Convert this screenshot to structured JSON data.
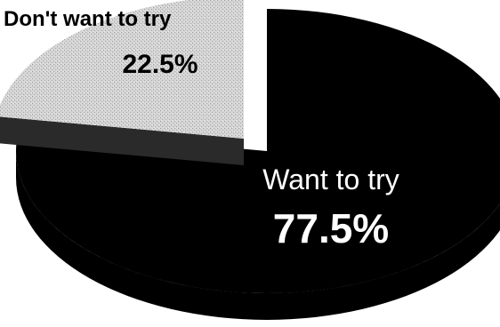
{
  "chart_data": {
    "type": "pie",
    "title": "",
    "categories": [
      "Want to try",
      "Don't want to try"
    ],
    "values": [
      77.5,
      22.5
    ],
    "value_labels": [
      "77.5%",
      "22.5%"
    ],
    "colors": [
      "#000000",
      "#d0d0d0"
    ],
    "exploded": [
      "Don't want to try"
    ],
    "style": "3d-tilted"
  }
}
